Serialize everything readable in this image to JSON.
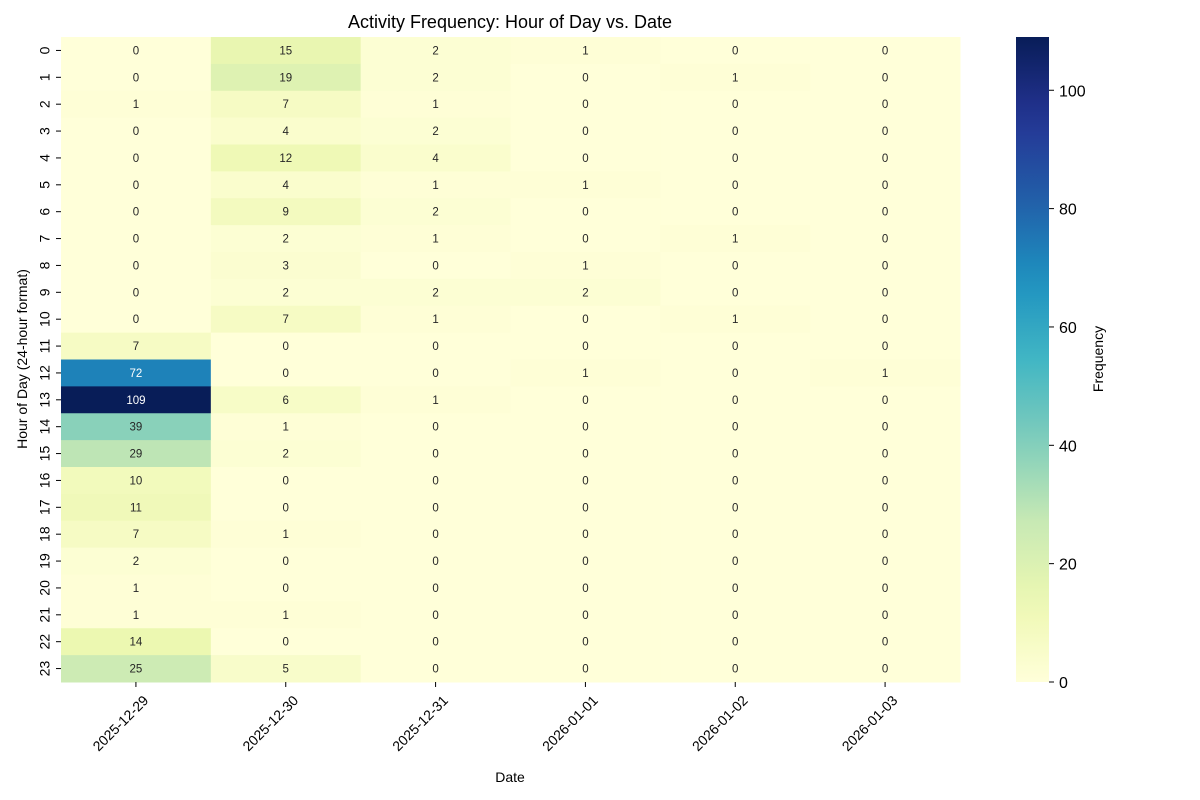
{
  "chart_data": {
    "type": "heatmap",
    "title": "Activity Frequency: Hour of Day vs. Date",
    "xlabel": "Date",
    "ylabel": "Hour of Day (24-hour format)",
    "colorbar_label": "Frequency",
    "colormap": "YlGnBu",
    "vmin": 0,
    "vmax": 109,
    "colorbar_ticks": [
      0,
      20,
      40,
      60,
      80,
      100
    ],
    "x_categories": [
      "2025-12-29",
      "2025-12-30",
      "2025-12-31",
      "2026-01-01",
      "2026-01-02",
      "2026-01-03"
    ],
    "y_categories": [
      "0",
      "1",
      "2",
      "3",
      "4",
      "5",
      "6",
      "7",
      "8",
      "9",
      "10",
      "11",
      "12",
      "13",
      "14",
      "15",
      "16",
      "17",
      "18",
      "19",
      "20",
      "21",
      "22",
      "23"
    ],
    "values": [
      [
        0,
        15,
        2,
        1,
        0,
        0
      ],
      [
        0,
        19,
        2,
        0,
        1,
        0
      ],
      [
        1,
        7,
        1,
        0,
        0,
        0
      ],
      [
        0,
        4,
        2,
        0,
        0,
        0
      ],
      [
        0,
        12,
        4,
        0,
        0,
        0
      ],
      [
        0,
        4,
        1,
        1,
        0,
        0
      ],
      [
        0,
        9,
        2,
        0,
        0,
        0
      ],
      [
        0,
        2,
        1,
        0,
        1,
        0
      ],
      [
        0,
        3,
        0,
        1,
        0,
        0
      ],
      [
        0,
        2,
        2,
        2,
        0,
        0
      ],
      [
        0,
        7,
        1,
        0,
        1,
        0
      ],
      [
        7,
        0,
        0,
        0,
        0,
        0
      ],
      [
        72,
        0,
        0,
        1,
        0,
        1
      ],
      [
        109,
        6,
        1,
        0,
        0,
        0
      ],
      [
        39,
        1,
        0,
        0,
        0,
        0
      ],
      [
        29,
        2,
        0,
        0,
        0,
        0
      ],
      [
        10,
        0,
        0,
        0,
        0,
        0
      ],
      [
        11,
        0,
        0,
        0,
        0,
        0
      ],
      [
        7,
        1,
        0,
        0,
        0,
        0
      ],
      [
        2,
        0,
        0,
        0,
        0,
        0
      ],
      [
        1,
        0,
        0,
        0,
        0,
        0
      ],
      [
        1,
        1,
        0,
        0,
        0,
        0
      ],
      [
        14,
        0,
        0,
        0,
        0,
        0
      ],
      [
        25,
        5,
        0,
        0,
        0,
        0
      ]
    ]
  }
}
